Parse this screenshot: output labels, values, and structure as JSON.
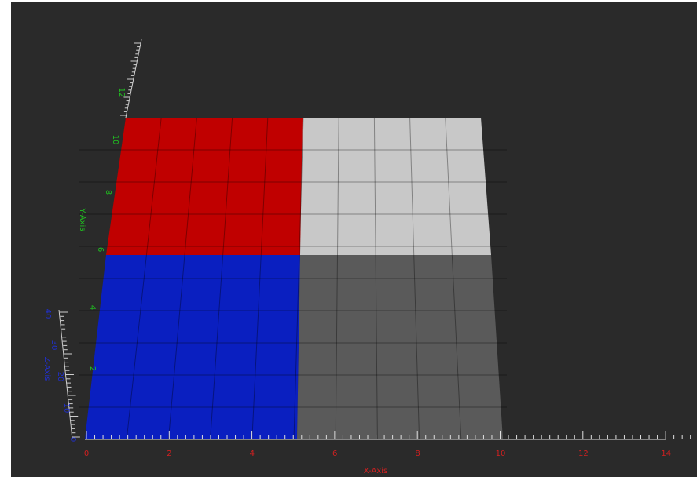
{
  "x_axis": {
    "title": "X-Axis",
    "ticks": [
      "0",
      "2",
      "4",
      "6",
      "8",
      "10",
      "12",
      "14"
    ]
  },
  "y_axis": {
    "title": "Y-Axis",
    "ticks": [
      "2",
      "4",
      "6",
      "8",
      "10",
      "12"
    ]
  },
  "z_axis": {
    "title": "Z-Axis",
    "ticks": [
      "0",
      "10",
      "20",
      "30",
      "40"
    ]
  }
}
